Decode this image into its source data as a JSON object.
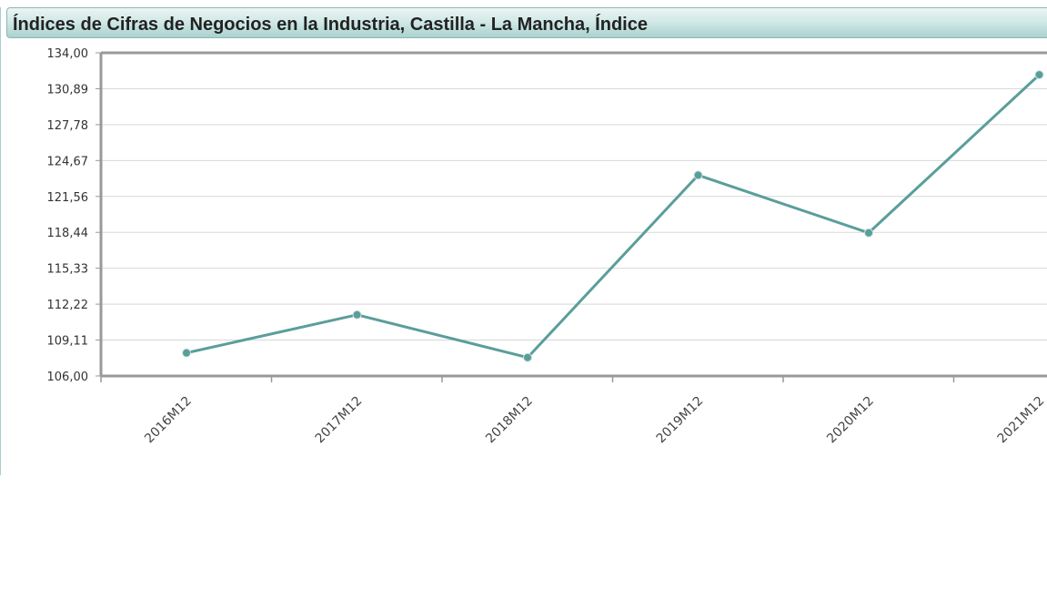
{
  "panel": {
    "title": "Índices de Cifras de Negocios en la Industria, Castilla - La Mancha, Índice"
  },
  "colors": {
    "line": "#5a9e9a",
    "title_gradient_top": "#eaf5f4",
    "title_gradient_bottom": "#a9d2cf",
    "grid": "#d8d8d8",
    "axis": "#999999"
  },
  "chart_data": {
    "type": "line",
    "title": "Índices de Cifras de Negocios en la Industria, Castilla - La Mancha, Índice",
    "xlabel": "",
    "ylabel": "",
    "categories": [
      "2016M12",
      "2017M12",
      "2018M12",
      "2019M12",
      "2020M12",
      "2021M12"
    ],
    "series": [
      {
        "values": [
          108.0,
          111.3,
          107.6,
          123.4,
          118.4,
          132.1
        ]
      }
    ],
    "ylim": [
      106.0,
      134.0
    ],
    "y_ticks": [
      "106,00",
      "109,11",
      "112,22",
      "115,33",
      "118,44",
      "121,56",
      "124,67",
      "127,78",
      "130,89",
      "134,00"
    ],
    "grid": true,
    "legend": "none"
  }
}
